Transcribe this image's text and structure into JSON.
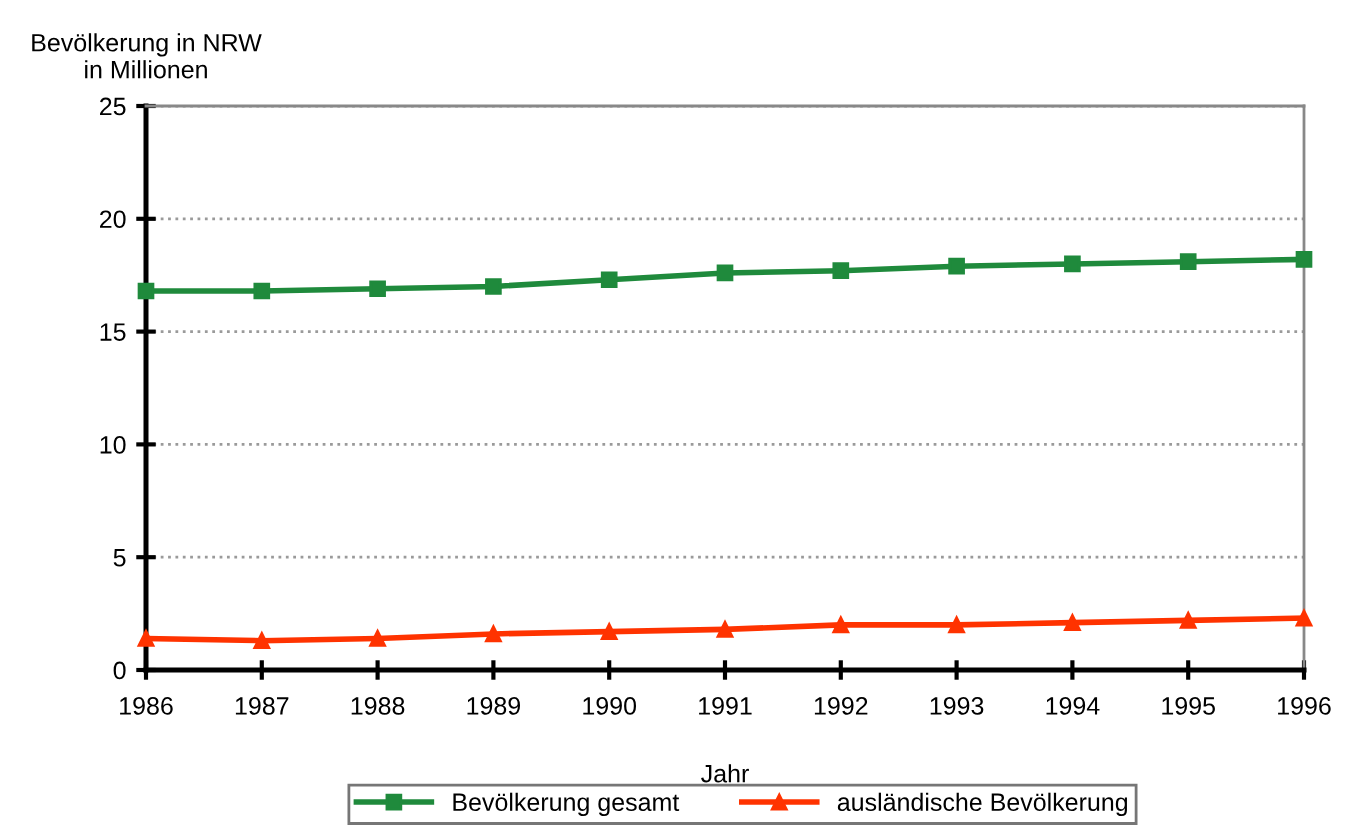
{
  "chart_data": {
    "type": "line",
    "ylabel": "Bevölkerung in NRW\nin Millionen",
    "xlabel": "Jahr",
    "x": [
      1986,
      1987,
      1988,
      1989,
      1990,
      1991,
      1992,
      1993,
      1994,
      1995,
      1996
    ],
    "series": [
      {
        "name": "Bevölkerung gesamt",
        "color": "#1f8a3c",
        "marker": "square",
        "values": [
          16.8,
          16.8,
          16.9,
          17.0,
          17.3,
          17.6,
          17.7,
          17.9,
          18.0,
          18.1,
          18.2
        ]
      },
      {
        "name": "ausländische Bevölkerung",
        "color": "#ff3300",
        "marker": "triangle",
        "values": [
          1.4,
          1.3,
          1.4,
          1.6,
          1.7,
          1.8,
          2.0,
          2.0,
          2.1,
          2.2,
          2.3
        ]
      }
    ],
    "xlim": [
      1986,
      1996
    ],
    "xticks": [
      1986,
      1987,
      1988,
      1989,
      1990,
      1991,
      1992,
      1993,
      1994,
      1995,
      1996
    ],
    "ylim": [
      0,
      25
    ],
    "yticks": [
      0,
      5,
      10,
      15,
      20,
      25
    ],
    "grid": "y",
    "legend": "bottom",
    "line_style": "solid"
  }
}
